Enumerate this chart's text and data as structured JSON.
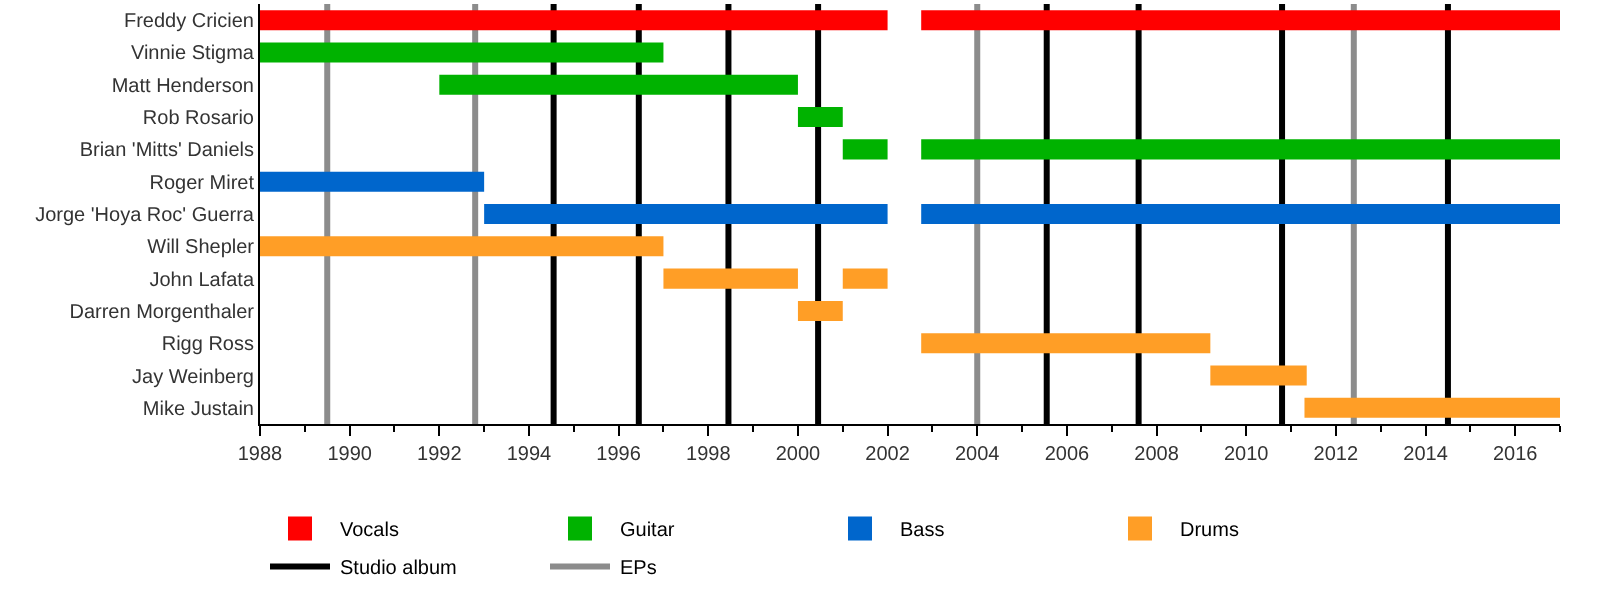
{
  "chart_data": {
    "type": "bar",
    "orientation": "horizontal",
    "categories": [
      "Freddy Cricien",
      "Vinnie Stigma",
      "Matt Henderson",
      "Rob Rosario",
      "Brian 'Mitts' Daniels",
      "Roger Miret",
      "Jorge 'Hoya Roc' Guerra",
      "Will Shepler",
      "John Lafata",
      "Darren Morgenthaler",
      "Rigg Ross",
      "Jay Weinberg",
      "Mike Justain"
    ],
    "series": [
      {
        "name": "Vocals",
        "color": "#ff0000",
        "base": [
          1988,
          null,
          null,
          null,
          null,
          null,
          null,
          null,
          null,
          null,
          null,
          null,
          null
        ],
        "values": [
          14,
          null,
          null,
          null,
          null,
          null,
          null,
          null,
          null,
          null,
          null,
          null,
          null
        ]
      },
      {
        "color": "#ff0000",
        "base": [
          2002.75,
          null,
          null,
          null,
          null,
          null,
          null,
          null,
          null,
          null,
          null,
          null,
          null
        ],
        "values": [
          14.25,
          null,
          null,
          null,
          null,
          null,
          null,
          null,
          null,
          null,
          null,
          null,
          null
        ]
      },
      {
        "name": "Guitar",
        "color": "#00b200",
        "base": [
          null,
          1988,
          1992,
          2000,
          2001,
          null,
          null,
          null,
          null,
          null,
          null,
          null,
          null
        ],
        "values": [
          null,
          9,
          8,
          1,
          1,
          null,
          null,
          null,
          null,
          null,
          null,
          null,
          null
        ]
      },
      {
        "color": "#00b200",
        "base": [
          null,
          null,
          null,
          null,
          2002.75,
          null,
          null,
          null,
          null,
          null,
          null,
          null,
          null
        ],
        "values": [
          null,
          null,
          null,
          null,
          14.25,
          null,
          null,
          null,
          null,
          null,
          null,
          null,
          null
        ]
      },
      {
        "name": "Bass",
        "color": "#0066cc",
        "base": [
          null,
          null,
          null,
          null,
          null,
          1988,
          1993,
          null,
          null,
          null,
          null,
          null,
          null
        ],
        "values": [
          null,
          null,
          null,
          null,
          null,
          5,
          9,
          null,
          null,
          null,
          null,
          null,
          null
        ]
      },
      {
        "color": "#0066cc",
        "base": [
          null,
          null,
          null,
          null,
          null,
          null,
          2002.75,
          null,
          null,
          null,
          null,
          null,
          null
        ],
        "values": [
          null,
          null,
          null,
          null,
          null,
          null,
          14.25,
          null,
          null,
          null,
          null,
          null,
          null
        ]
      },
      {
        "name": "Drums",
        "color": "#ff9e26",
        "base": [
          null,
          null,
          null,
          null,
          null,
          null,
          null,
          1988,
          1997,
          2000,
          2002.75,
          2009.2,
          2011.3
        ],
        "values": [
          null,
          null,
          null,
          null,
          null,
          null,
          null,
          9,
          3,
          1,
          6.45,
          2.15,
          5.7
        ]
      },
      {
        "color": "#ff9e26",
        "base": [
          null,
          null,
          null,
          null,
          null,
          null,
          null,
          null,
          2001,
          null,
          null,
          null,
          null
        ],
        "values": [
          null,
          null,
          null,
          null,
          null,
          null,
          null,
          null,
          1,
          null,
          null,
          null,
          null
        ]
      }
    ],
    "ref_lines": [
      {
        "axis": "x",
        "value": 1994.55,
        "label": "Studio album",
        "color": "#000000"
      },
      {
        "axis": "x",
        "value": 1996.45,
        "color": "#000000"
      },
      {
        "axis": "x",
        "value": 1998.45,
        "color": "#000000"
      },
      {
        "axis": "x",
        "value": 2000.45,
        "color": "#000000"
      },
      {
        "axis": "x",
        "value": 2005.55,
        "color": "#000000"
      },
      {
        "axis": "x",
        "value": 2007.6,
        "color": "#000000"
      },
      {
        "axis": "x",
        "value": 2010.8,
        "color": "#000000"
      },
      {
        "axis": "x",
        "value": 2014.5,
        "color": "#000000"
      },
      {
        "axis": "x",
        "value": 1989.5,
        "label": "EPs",
        "color": "#8c8c8c"
      },
      {
        "axis": "x",
        "value": 1992.8,
        "color": "#8c8c8c"
      },
      {
        "axis": "x",
        "value": 2004.0,
        "color": "#8c8c8c"
      },
      {
        "axis": "x",
        "value": 2012.4,
        "color": "#8c8c8c"
      }
    ],
    "xlim": [
      1988,
      2017
    ],
    "xticks": [
      1988,
      1990,
      1992,
      1994,
      1996,
      1998,
      2000,
      2002,
      2004,
      2006,
      2008,
      2010,
      2012,
      2014,
      2016
    ],
    "grid": false,
    "legend": "bottom"
  }
}
